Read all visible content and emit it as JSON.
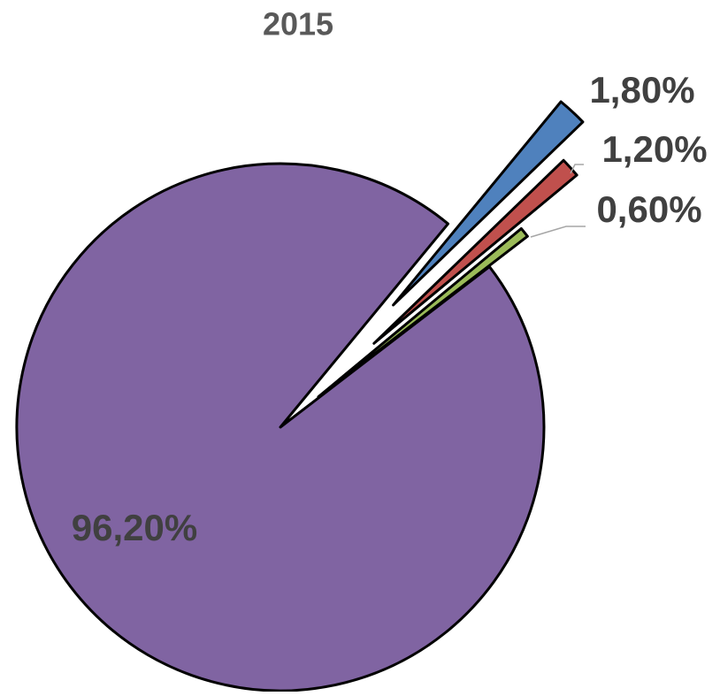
{
  "chart_data": {
    "type": "pie",
    "title": "2015",
    "values": [
      1.8,
      1.2,
      0.6,
      96.2
    ],
    "value_labels": [
      "1,80%",
      "1,20%",
      "0,60%",
      "96,20%"
    ],
    "colors": [
      "#4f81bd",
      "#c0504d",
      "#9bbb59",
      "#8064a2"
    ]
  }
}
